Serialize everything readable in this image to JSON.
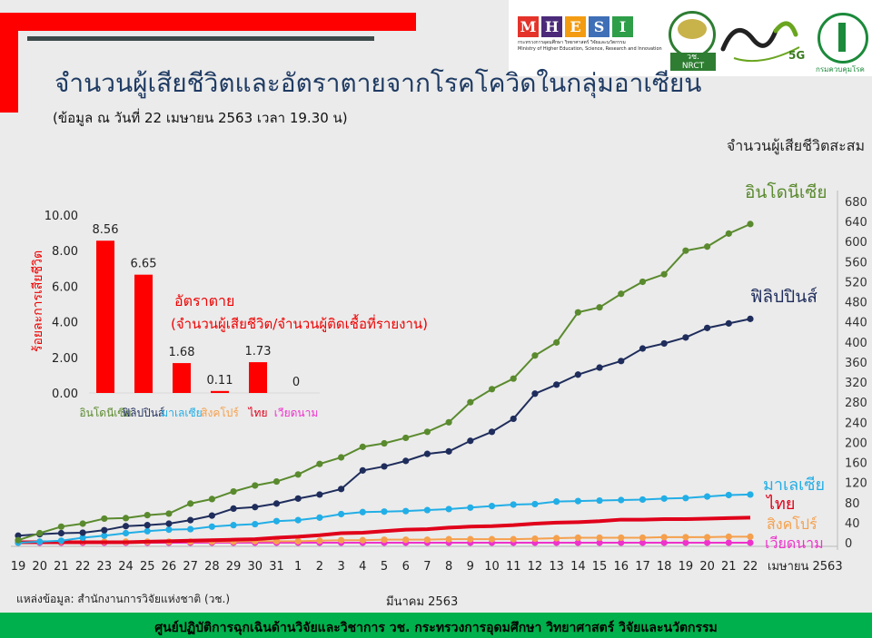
{
  "header": {
    "title": "จำนวนผู้เสียชีวิตและอัตราตายจากโรคโควิดในกลุ่มอาเซียน",
    "subtitle": "(ข้อมูล ณ วันที่ 22 เมษายน 2563 เวลา 19.30 น)"
  },
  "logos": {
    "mhesi_letters": [
      "M",
      "H",
      "E",
      "S",
      "I"
    ],
    "mhesi_colors": [
      "#e4332a",
      "#4b2a7a",
      "#f39c12",
      "#3f6fb6",
      "#2e9e48"
    ],
    "mhesi_thai": "กระทรวงการอุดมศึกษา วิทยาศาสตร์ วิจัยและนวัตกรรม",
    "mhesi_english": "Ministry of Higher Education, Science, Research and Innovation",
    "nrct_label": "NRCT",
    "nrct_thai": "วช.",
    "anniv_label": "5G",
    "ddc_label": "กรมควบคุมโรค"
  },
  "source_note": "แหล่งข้อมูล: สำนักงานการวิจัยแห่งชาติ (วช.)",
  "footer_text": "ศูนย์ปฏิบัติการฉุกเฉินด้านวิจัยและวิชาการ   วช.   กระทรวงการอุดมศึกษา วิทยาศาสตร์ วิจัยและนวัตกรรม",
  "colors": {
    "indonesia": "#5a8a2e",
    "philippines": "#1f2d5c",
    "malaysia": "#22aee6",
    "thailand": "#e0001a",
    "singapore": "#f5a04d",
    "vietnam": "#ee33cc",
    "bar": "#ff0000"
  },
  "chart_data": [
    {
      "type": "line",
      "ylabel": "จำนวนผู้เสียชีวิตสะสม",
      "ylim": [
        0,
        680
      ],
      "yticks": [
        0,
        40,
        80,
        120,
        160,
        200,
        240,
        280,
        320,
        360,
        400,
        440,
        480,
        520,
        560,
        600,
        640,
        680
      ],
      "x_tick_labels": [
        "19",
        "20",
        "21",
        "22",
        "23",
        "24",
        "25",
        "26",
        "27",
        "28",
        "29",
        "30",
        "31",
        "1",
        "2",
        "3",
        "4",
        "5",
        "6",
        "7",
        "8",
        "9",
        "10",
        "11",
        "12",
        "13",
        "14",
        "15",
        "16",
        "17",
        "18",
        "19",
        "20",
        "21",
        "22"
      ],
      "x_group_labels": {
        "march": "มีนาคม 2563",
        "april": "เมษายน 2563"
      },
      "series": [
        {
          "name": "อินโดนีเซีย",
          "key": "indonesia",
          "values": [
            5,
            19,
            32,
            38,
            48,
            49,
            55,
            58,
            78,
            87,
            102,
            114,
            122,
            136,
            157,
            170,
            191,
            198,
            209,
            221,
            240,
            280,
            306,
            327,
            373,
            399,
            459,
            469,
            496,
            520,
            535,
            582,
            590,
            616,
            635
          ]
        },
        {
          "name": "ฟิลิปปินส์",
          "key": "philippines",
          "values": [
            14,
            17,
            19,
            20,
            25,
            33,
            35,
            38,
            45,
            54,
            68,
            71,
            78,
            88,
            96,
            107,
            144,
            152,
            163,
            177,
            182,
            203,
            221,
            247,
            297,
            315,
            335,
            349,
            362,
            387,
            397,
            409,
            428,
            437,
            446
          ]
        },
        {
          "name": "มาเลเซีย",
          "key": "malaysia",
          "values": [
            0,
            2,
            4,
            10,
            14,
            19,
            23,
            26,
            27,
            32,
            35,
            37,
            43,
            45,
            50,
            57,
            61,
            62,
            63,
            65,
            67,
            70,
            73,
            76,
            77,
            82,
            83,
            84,
            85,
            86,
            88,
            89,
            92,
            95,
            96
          ]
        },
        {
          "name": "ไทย",
          "key": "thailand",
          "values": [
            1,
            1,
            1,
            1,
            1,
            1,
            2,
            3,
            4,
            5,
            6,
            7,
            10,
            12,
            15,
            19,
            20,
            23,
            26,
            27,
            30,
            32,
            33,
            35,
            38,
            40,
            41,
            43,
            46,
            46,
            47,
            47,
            48,
            49,
            50
          ]
        },
        {
          "name": "สิงคโปร์",
          "key": "singapore",
          "values": [
            0,
            2,
            2,
            2,
            2,
            2,
            2,
            2,
            2,
            2,
            2,
            3,
            3,
            3,
            4,
            5,
            5,
            6,
            6,
            6,
            7,
            7,
            7,
            7,
            8,
            9,
            10,
            10,
            10,
            10,
            11,
            11,
            11,
            12,
            12
          ]
        },
        {
          "name": "เวียดนาม",
          "key": "vietnam",
          "values": [
            0,
            0,
            0,
            0,
            0,
            0,
            0,
            0,
            0,
            0,
            0,
            0,
            0,
            0,
            0,
            0,
            0,
            0,
            0,
            0,
            0,
            0,
            0,
            0,
            0,
            0,
            0,
            0,
            0,
            0,
            0,
            0,
            0,
            0,
            0
          ]
        }
      ]
    },
    {
      "type": "bar",
      "title": "อัตราตาย",
      "subtitle": "(จำนวนผู้เสียชีวิต/จำนวนผู้ติดเชื้อที่รายงาน)",
      "ylabel": "ร้อยละการเสียชีวิต",
      "ylim": [
        0,
        10
      ],
      "yticks": [
        "0.00",
        "2.00",
        "4.00",
        "6.00",
        "8.00",
        "10.00"
      ],
      "categories": [
        "อินโดนีเซีย",
        "ฟิลิปปินส์",
        "มาเลเซีย",
        "สิงคโปร์",
        "ไทย",
        "เวียดนาม"
      ],
      "category_keys": [
        "indonesia",
        "philippines",
        "malaysia",
        "singapore",
        "thailand",
        "vietnam"
      ],
      "values": [
        8.56,
        6.65,
        1.68,
        0.11,
        1.73,
        0
      ],
      "value_labels": [
        "8.56",
        "6.65",
        "1.68",
        "0.11",
        "1.73",
        "0"
      ]
    }
  ]
}
